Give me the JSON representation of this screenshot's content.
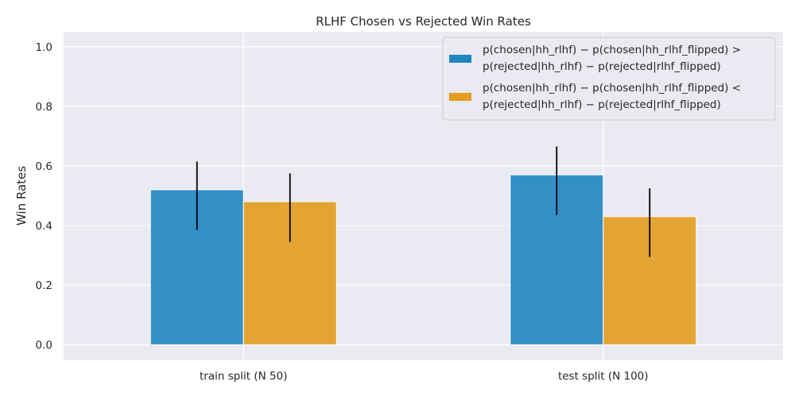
{
  "chart_data": {
    "type": "bar",
    "title": "RLHF Chosen vs Rejected Win Rates",
    "xlabel": "",
    "ylabel": "Win Rates",
    "categories": [
      "train split (N 50)",
      "test split (N 100)"
    ],
    "ylim": [
      -0.05,
      1.05
    ],
    "yticks": [
      "0.0",
      "0.2",
      "0.4",
      "0.6",
      "0.8",
      "1.0"
    ],
    "grid": true,
    "legend_position": "top-right",
    "series": [
      {
        "name_line1": "p(chosen|hh_rlhf) − p(chosen|hh_rlhf_flipped) >",
        "name_line2": "p(rejected|hh_rlhf) − p(rejected|rlhf_flipped)",
        "color": "#1f86c2",
        "values": [
          0.52,
          0.57
        ],
        "error_low": [
          0.385,
          0.435
        ],
        "error_high": [
          0.615,
          0.665
        ]
      },
      {
        "name_line1": "p(chosen|hh_rlhf) − p(chosen|hh_rlhf_flipped) <",
        "name_line2": "p(rejected|hh_rlhf) − p(rejected|rlhf_flipped)",
        "color": "#e39c1f",
        "values": [
          0.48,
          0.43
        ],
        "error_low": [
          0.345,
          0.295
        ],
        "error_high": [
          0.575,
          0.525
        ]
      }
    ]
  }
}
